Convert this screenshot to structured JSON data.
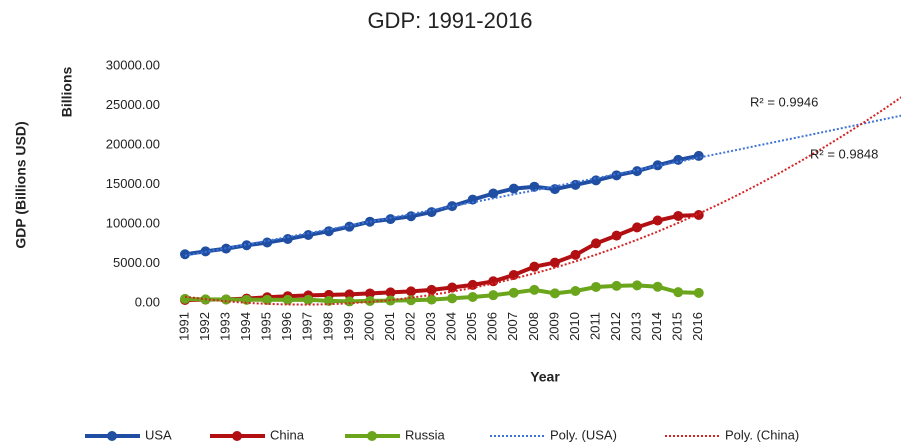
{
  "chart_data": {
    "type": "line",
    "title": "GDP: 1991-2016",
    "x_label": "Year",
    "y_label": "GDP (Billions USD)",
    "y_units_label": "Billions",
    "categories": [
      "1991",
      "1992",
      "1993",
      "1994",
      "1995",
      "1996",
      "1997",
      "1998",
      "1999",
      "2000",
      "2001",
      "2002",
      "2003",
      "2004",
      "2005",
      "2006",
      "2007",
      "2008",
      "2009",
      "2010",
      "2011",
      "2012",
      "2013",
      "2014",
      "2015",
      "2016",
      null,
      null,
      null,
      null,
      null,
      null,
      null,
      null,
      null,
      null
    ],
    "ylim": [
      0,
      30000
    ],
    "yticks": [
      {
        "value": 0,
        "label": "0.00"
      },
      {
        "value": 5000,
        "label": "5000.00"
      },
      {
        "value": 10000,
        "label": "10000.00"
      },
      {
        "value": 15000,
        "label": "15000.00"
      },
      {
        "value": 20000,
        "label": "20000.00"
      },
      {
        "value": 25000,
        "label": "25000.00"
      },
      {
        "value": 30000,
        "label": "30000.00"
      }
    ],
    "grid": false,
    "legend": "bottom",
    "series": [
      {
        "name": "USA",
        "color": "#1f4ea3",
        "dash": "solid",
        "marker": true,
        "values": [
          6170,
          6540,
          6880,
          7310,
          7660,
          8100,
          8610,
          9090,
          9660,
          10290,
          10620,
          10980,
          11510,
          12270,
          13090,
          13860,
          14480,
          14720,
          14420,
          14960,
          15520,
          16160,
          16690,
          17430,
          18120,
          18620,
          null,
          null,
          null,
          null,
          null,
          null,
          null,
          null,
          null,
          null
        ]
      },
      {
        "name": "China",
        "color": "#b10f12",
        "dash": "solid",
        "marker": true,
        "values": [
          380,
          430,
          450,
          560,
          730,
          860,
          960,
          1030,
          1090,
          1210,
          1340,
          1470,
          1660,
          1960,
          2290,
          2750,
          3550,
          4600,
          5110,
          6090,
          7550,
          8530,
          9570,
          10440,
          11020,
          11140,
          null,
          null,
          null,
          null,
          null,
          null,
          null,
          null,
          null,
          null
        ]
      },
      {
        "name": "Russia",
        "color": "#6aa51c",
        "dash": "solid",
        "marker": true,
        "values": [
          520,
          460,
          440,
          400,
          400,
          390,
          400,
          270,
          200,
          260,
          310,
          350,
          430,
          590,
          760,
          990,
          1300,
          1660,
          1220,
          1520,
          2030,
          2170,
          2230,
          2060,
          1370,
          1280,
          null,
          null,
          null,
          null,
          null,
          null,
          null,
          null,
          null,
          null
        ]
      },
      {
        "name": "Poly. (USA)",
        "color": "#3f74d6",
        "dash": "dotted",
        "marker": false,
        "values": [
          6000,
          6466,
          6934,
          7405,
          7878,
          8354,
          8833,
          9314,
          9797,
          10283,
          10772,
          11263,
          11756,
          12252,
          12751,
          13252,
          13756,
          14262,
          14770,
          15281,
          15795,
          16311,
          16830,
          17351,
          17875,
          18401,
          18929,
          19460,
          19994,
          20530,
          21069,
          21610,
          22154,
          22701,
          23250,
          23800
        ]
      },
      {
        "name": "Poly. (China)",
        "color": "#d42424",
        "dash": "dotted",
        "marker": false,
        "values": [
          800,
          479,
          221,
          24,
          -112,
          -186,
          -197,
          -148,
          -36,
          138,
          372,
          669,
          1027,
          1447,
          1929,
          2473,
          3078,
          3745,
          4474,
          5265,
          6116,
          7030,
          8006,
          9043,
          10141,
          11301,
          12523,
          13807,
          15152,
          16558,
          18026,
          19556,
          21148,
          22801,
          24515,
          26300
        ]
      }
    ],
    "annotations": [
      "R² = 0.9946",
      "R² = 0.9848"
    ]
  }
}
